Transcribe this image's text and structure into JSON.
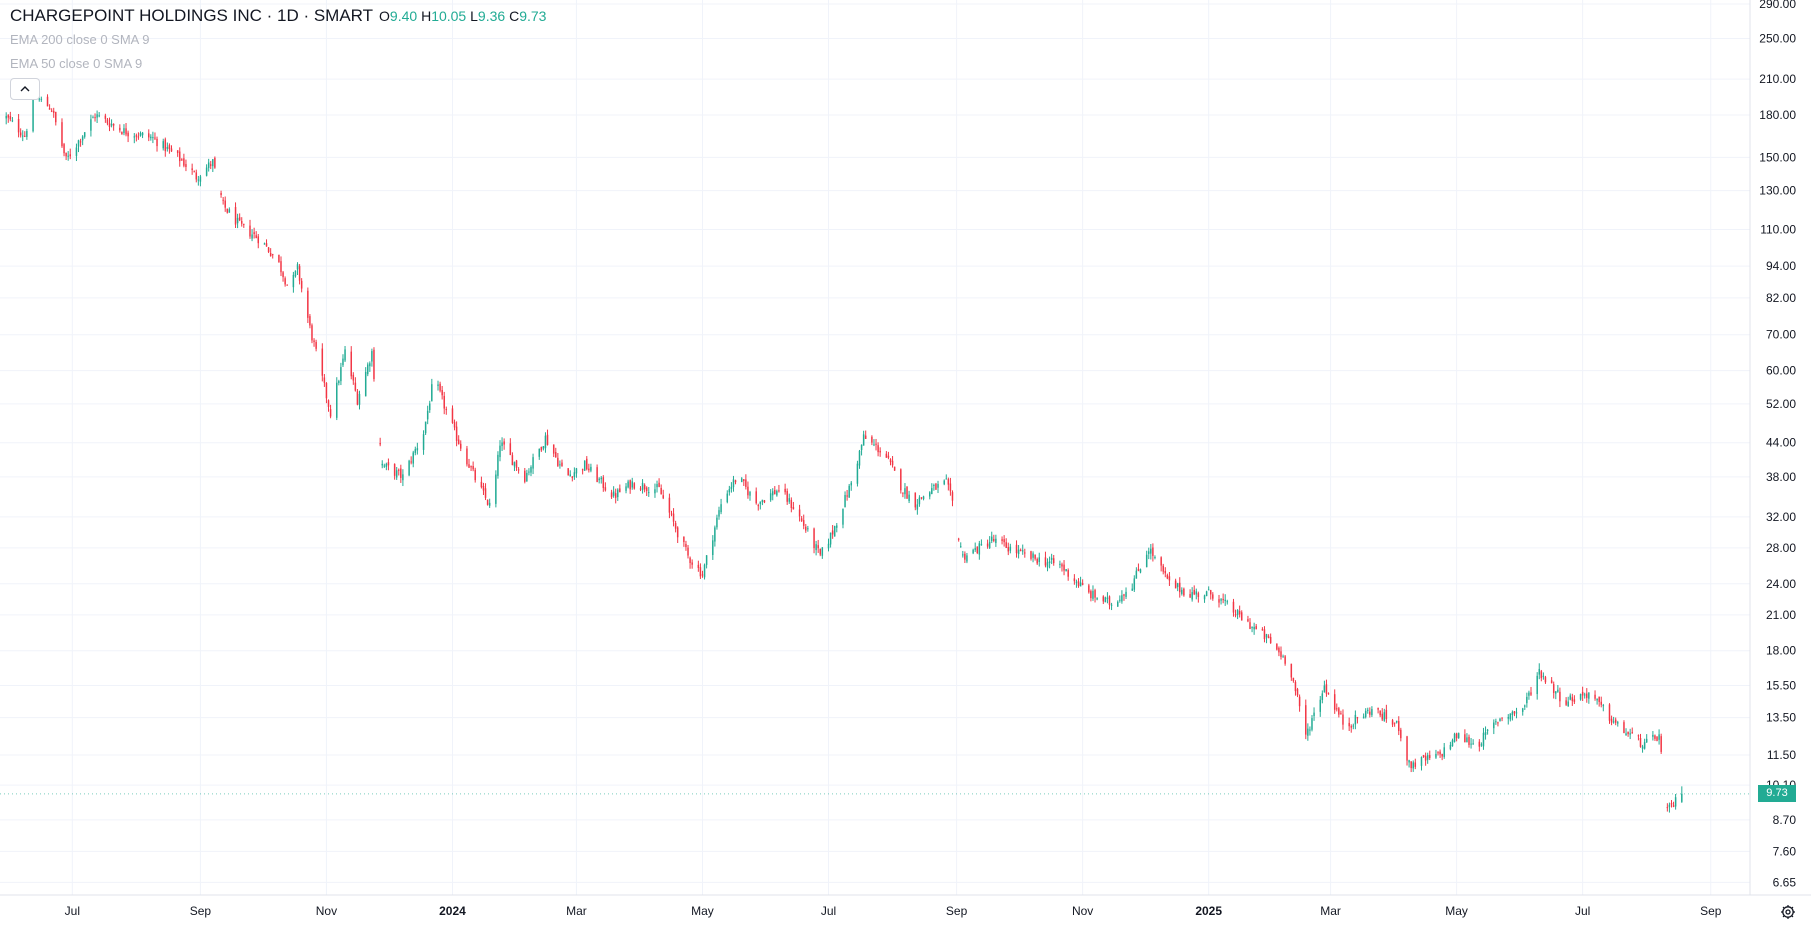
{
  "legend": {
    "symbol_title": "CHARGEPOINT HOLDINGS INC · 1D · SMART",
    "open_key": "O",
    "open_value": "9.40",
    "high_key": "H",
    "high_value": "10.05",
    "low_key": "L",
    "low_value": "9.36",
    "close_key": "C",
    "close_value": "9.73"
  },
  "indicators": [
    {
      "label": "EMA 200 close 0 SMA 9"
    },
    {
      "label": "EMA 50 close 0 SMA 9"
    }
  ],
  "last_price_label": "9.73",
  "icons": {
    "collapse": "chevron-up-icon",
    "settings": "gear-icon"
  },
  "colors": {
    "up": "#22ab94",
    "down": "#f23645",
    "grid": "#f0f3fa",
    "axis_text": "#131722",
    "legend_muted": "#b2b5be"
  },
  "chart_data": {
    "type": "candlestick",
    "interval": "1D",
    "y_scale": "log",
    "grid": true,
    "ylim": [
      6.3,
      295
    ],
    "y_ticks": [
      "6.65",
      "7.60",
      "8.70",
      "10.10",
      "11.50",
      "13.50",
      "15.50",
      "18.00",
      "21.00",
      "24.00",
      "28.00",
      "32.00",
      "38.00",
      "44.00",
      "52.00",
      "60.00",
      "70.00",
      "82.00",
      "94.00",
      "110.00",
      "130.00",
      "150.00",
      "180.00",
      "210.00",
      "250.00",
      "290.00"
    ],
    "x_range": [
      "2023-05-27",
      "2025-09-20"
    ],
    "x_ticks": [
      {
        "label": "Jul",
        "date": "2023-07-01"
      },
      {
        "label": "Sep",
        "date": "2023-09-01"
      },
      {
        "label": "Nov",
        "date": "2023-11-01"
      },
      {
        "label": "2024",
        "date": "2024-01-01"
      },
      {
        "label": "Mar",
        "date": "2024-03-01"
      },
      {
        "label": "May",
        "date": "2024-05-01"
      },
      {
        "label": "Jul",
        "date": "2024-07-01"
      },
      {
        "label": "Sep",
        "date": "2024-09-01"
      },
      {
        "label": "Nov",
        "date": "2024-11-01"
      },
      {
        "label": "2025",
        "date": "2025-01-01"
      },
      {
        "label": "Mar",
        "date": "2025-03-01"
      },
      {
        "label": "May",
        "date": "2025-05-01"
      },
      {
        "label": "Jul",
        "date": "2025-07-01"
      },
      {
        "label": "Sep",
        "date": "2025-09-01"
      }
    ],
    "close_path": [
      [
        "2023-05-30",
        178
      ],
      [
        "2023-06-08",
        165
      ],
      [
        "2023-06-13",
        195
      ],
      [
        "2023-06-21",
        185
      ],
      [
        "2023-06-28",
        148
      ],
      [
        "2023-07-12",
        180
      ],
      [
        "2023-07-26",
        168
      ],
      [
        "2023-08-09",
        163
      ],
      [
        "2023-08-23",
        148
      ],
      [
        "2023-08-30",
        138
      ],
      [
        "2023-09-07",
        147
      ],
      [
        "2023-09-12",
        122
      ],
      [
        "2023-09-20",
        112
      ],
      [
        "2023-09-29",
        106
      ],
      [
        "2023-10-08",
        97
      ],
      [
        "2023-10-14",
        85
      ],
      [
        "2023-10-18",
        93
      ],
      [
        "2023-10-24",
        72
      ],
      [
        "2023-11-03",
        50
      ],
      [
        "2023-11-10",
        65
      ],
      [
        "2023-11-16",
        53
      ],
      [
        "2023-11-23",
        65
      ],
      [
        "2023-11-28",
        40
      ],
      [
        "2023-12-08",
        38
      ],
      [
        "2023-12-18",
        46
      ],
      [
        "2023-12-23",
        58
      ],
      [
        "2024-01-02",
        46
      ],
      [
        "2024-01-13",
        37
      ],
      [
        "2024-01-20",
        33
      ],
      [
        "2024-01-24",
        44
      ],
      [
        "2024-02-05",
        38
      ],
      [
        "2024-02-15",
        45
      ],
      [
        "2024-02-25",
        38
      ],
      [
        "2024-03-05",
        40
      ],
      [
        "2024-03-19",
        35
      ],
      [
        "2024-03-28",
        37
      ],
      [
        "2024-04-10",
        36
      ],
      [
        "2024-04-24",
        27
      ],
      [
        "2024-05-01",
        25
      ],
      [
        "2024-05-11",
        35
      ],
      [
        "2024-05-18",
        38
      ],
      [
        "2024-05-27",
        34
      ],
      [
        "2024-06-07",
        36
      ],
      [
        "2024-06-15",
        33
      ],
      [
        "2024-06-27",
        27
      ],
      [
        "2024-07-03",
        30
      ],
      [
        "2024-07-12",
        37
      ],
      [
        "2024-07-18",
        45
      ],
      [
        "2024-07-28",
        42
      ],
      [
        "2024-08-06",
        36
      ],
      [
        "2024-08-12",
        34
      ],
      [
        "2024-08-20",
        36
      ],
      [
        "2024-08-27",
        37
      ],
      [
        "2024-08-30",
        34
      ],
      [
        "2024-09-04",
        27
      ],
      [
        "2024-09-12",
        28
      ],
      [
        "2024-09-18",
        29
      ],
      [
        "2024-10-05",
        27
      ],
      [
        "2024-10-21",
        26
      ],
      [
        "2024-11-04",
        23
      ],
      [
        "2024-11-15",
        22
      ],
      [
        "2024-11-25",
        24
      ],
      [
        "2024-12-03",
        28
      ],
      [
        "2024-12-13",
        24
      ],
      [
        "2024-12-23",
        23
      ],
      [
        "2025-01-03",
        23
      ],
      [
        "2025-01-15",
        21
      ],
      [
        "2025-01-29",
        19
      ],
      [
        "2025-02-09",
        17
      ],
      [
        "2025-02-17",
        12.5
      ],
      [
        "2025-02-26",
        15.5
      ],
      [
        "2025-03-08",
        13
      ],
      [
        "2025-03-21",
        14
      ],
      [
        "2025-04-03",
        13
      ],
      [
        "2025-04-08",
        11
      ],
      [
        "2025-04-23",
        11.5
      ],
      [
        "2025-05-01",
        12.5
      ],
      [
        "2025-05-11",
        12
      ],
      [
        "2025-05-22",
        13.5
      ],
      [
        "2025-06-02",
        14
      ],
      [
        "2025-06-10",
        16.5
      ],
      [
        "2025-06-22",
        14.5
      ],
      [
        "2025-07-04",
        15
      ],
      [
        "2025-07-18",
        13
      ],
      [
        "2025-07-31",
        12
      ],
      [
        "2025-08-07",
        12.5
      ],
      [
        "2025-08-11",
        9.0
      ],
      [
        "2025-08-18",
        9.73
      ]
    ],
    "gaps": [
      [
        "2023-09-08",
        "2023-09-12"
      ],
      [
        "2023-11-25",
        "2023-11-28"
      ],
      [
        "2024-08-30",
        "2024-09-04"
      ],
      [
        "2025-08-08",
        "2025-08-11"
      ]
    ],
    "last": {
      "date": "2025-08-18",
      "open": 9.4,
      "high": 10.05,
      "low": 9.36,
      "close": 9.73
    }
  }
}
